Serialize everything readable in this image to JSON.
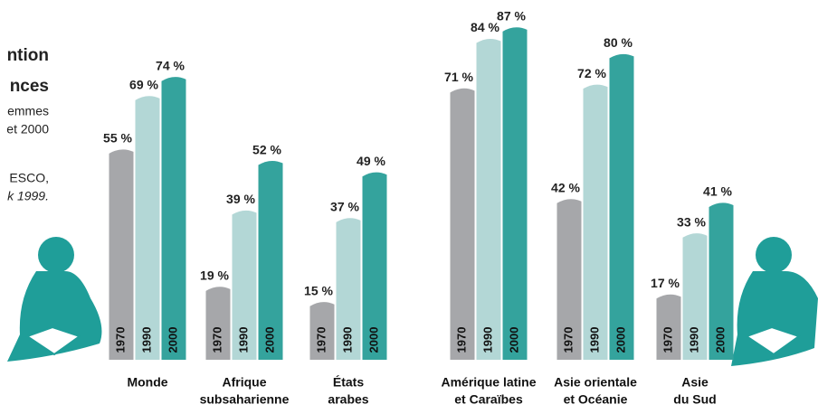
{
  "header": {
    "lines": [
      "ntion",
      "nces",
      "emmes",
      "et 2000",
      "ESCO,",
      "k 1999."
    ]
  },
  "chart_data": {
    "type": "bar",
    "categories": [
      [
        "Monde"
      ],
      [
        "Afrique",
        "subsaharienne"
      ],
      [
        "États",
        "arabes"
      ],
      [
        "Amérique latine",
        "et Caraïbes"
      ],
      [
        "Asie orientale",
        "et Océanie"
      ],
      [
        "Asie",
        "du Sud"
      ]
    ],
    "series": [
      {
        "name": "1970",
        "color": "#a6a7aa",
        "values": [
          55,
          19,
          15,
          71,
          42,
          17
        ],
        "value_labels": [
          "55 %",
          "19 %",
          "15 %",
          "71 %",
          "42 %",
          "17 %"
        ]
      },
      {
        "name": "1990",
        "color": "#b3d7d6",
        "values": [
          69,
          39,
          37,
          84,
          72,
          33
        ],
        "value_labels": [
          "69 %",
          "39 %",
          "37 %",
          "84 %",
          "72 %",
          "33 %"
        ]
      },
      {
        "name": "2000",
        "color": "#34a39d",
        "values": [
          74,
          52,
          49,
          87,
          80,
          41
        ],
        "value_labels": [
          "74 %",
          "52 %",
          "49 %",
          "87 %",
          "80 %",
          "41 %"
        ]
      }
    ]
  }
}
